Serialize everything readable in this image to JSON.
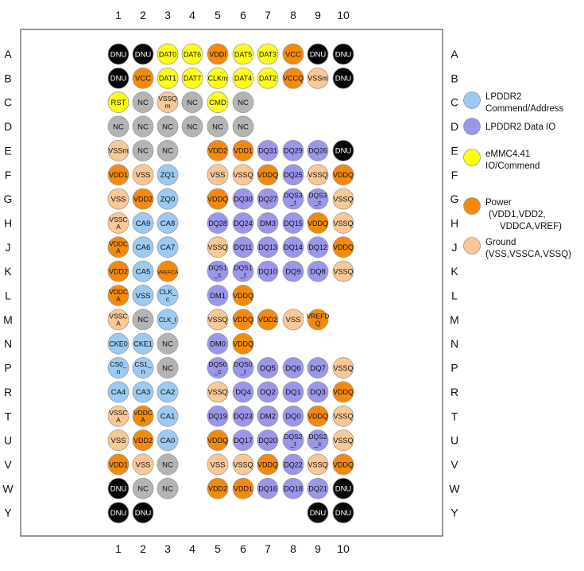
{
  "columns": [
    "1",
    "2",
    "3",
    "4",
    "5",
    "6",
    "7",
    "8",
    "9",
    "10"
  ],
  "rows": [
    "A",
    "B",
    "C",
    "D",
    "E",
    "F",
    "G",
    "H",
    "J",
    "K",
    "L",
    "M",
    "N",
    "P",
    "R",
    "T",
    "U",
    "V",
    "W",
    "Y"
  ],
  "colors": {
    "DNU": "#050505",
    "NC": "#b4b4b4",
    "EMMC": "#ffff14",
    "PWR": "#f58a0a",
    "GND": "#fac896",
    "CA": "#9ccaf2",
    "DQ": "#9a96ec"
  },
  "legend": [
    {
      "type": "CA",
      "line1": "LPDDR2",
      "line2": "Commend/Address"
    },
    {
      "type": "DQ",
      "line1": "LPDDR2 Data IO",
      "line2": ""
    },
    {
      "type": "EMMC",
      "line1": "eMMC4.41",
      "line2": "IO/Commend"
    },
    {
      "type": "PWR",
      "line1": "Power",
      "line2": "(VDD1,VDD2,",
      "line3": "VDDCA,VREF)"
    },
    {
      "type": "GND",
      "line1": "Ground",
      "line2": "(VSS,VSSCA,VSSQ)"
    }
  ],
  "balls": [
    {
      "r": "A",
      "c": 1,
      "t": "DNU",
      "l": "DNU"
    },
    {
      "r": "A",
      "c": 2,
      "t": "DNU",
      "l": "DNU"
    },
    {
      "r": "A",
      "c": 3,
      "t": "EMMC",
      "l": "DAT0"
    },
    {
      "r": "A",
      "c": 4,
      "t": "EMMC",
      "l": "DAT6"
    },
    {
      "r": "A",
      "c": 5,
      "t": "PWR",
      "l": "VDDI"
    },
    {
      "r": "A",
      "c": 6,
      "t": "EMMC",
      "l": "DAT5"
    },
    {
      "r": "A",
      "c": 7,
      "t": "EMMC",
      "l": "DAT3"
    },
    {
      "r": "A",
      "c": 8,
      "t": "PWR",
      "l": "VCC"
    },
    {
      "r": "A",
      "c": 9,
      "t": "DNU",
      "l": "DNU"
    },
    {
      "r": "A",
      "c": 10,
      "t": "DNU",
      "l": "DNU"
    },
    {
      "r": "B",
      "c": 1,
      "t": "DNU",
      "l": "DNU"
    },
    {
      "r": "B",
      "c": 2,
      "t": "PWR",
      "l": "VCC"
    },
    {
      "r": "B",
      "c": 3,
      "t": "EMMC",
      "l": "DAT1"
    },
    {
      "r": "B",
      "c": 4,
      "t": "EMMC",
      "l": "DAT7"
    },
    {
      "r": "B",
      "c": 5,
      "t": "EMMC",
      "l": "CLKm"
    },
    {
      "r": "B",
      "c": 6,
      "t": "EMMC",
      "l": "DAT4"
    },
    {
      "r": "B",
      "c": 7,
      "t": "EMMC",
      "l": "DAT2"
    },
    {
      "r": "B",
      "c": 8,
      "t": "PWR",
      "l": "VCCQ"
    },
    {
      "r": "B",
      "c": 9,
      "t": "GND",
      "l": "VSSm"
    },
    {
      "r": "B",
      "c": 10,
      "t": "DNU",
      "l": "DNU"
    },
    {
      "r": "C",
      "c": 1,
      "t": "EMMC",
      "l": "RST"
    },
    {
      "r": "C",
      "c": 2,
      "t": "NC",
      "l": "NC"
    },
    {
      "r": "C",
      "c": 3,
      "t": "GND",
      "l": "VSSQ m"
    },
    {
      "r": "C",
      "c": 4,
      "t": "NC",
      "l": "NC"
    },
    {
      "r": "C",
      "c": 5,
      "t": "EMMC",
      "l": "CMD"
    },
    {
      "r": "C",
      "c": 6,
      "t": "NC",
      "l": "NC"
    },
    {
      "r": "D",
      "c": 1,
      "t": "NC",
      "l": "NC"
    },
    {
      "r": "D",
      "c": 2,
      "t": "NC",
      "l": "NC"
    },
    {
      "r": "D",
      "c": 3,
      "t": "NC",
      "l": "NC"
    },
    {
      "r": "D",
      "c": 4,
      "t": "NC",
      "l": "NC"
    },
    {
      "r": "D",
      "c": 5,
      "t": "NC",
      "l": "NC"
    },
    {
      "r": "D",
      "c": 6,
      "t": "NC",
      "l": "NC"
    },
    {
      "r": "E",
      "c": 1,
      "t": "GND",
      "l": "VSSm"
    },
    {
      "r": "E",
      "c": 2,
      "t": "NC",
      "l": "NC"
    },
    {
      "r": "E",
      "c": 3,
      "t": "NC",
      "l": "NC"
    },
    {
      "r": "E",
      "c": 5,
      "t": "PWR",
      "l": "VDD2"
    },
    {
      "r": "E",
      "c": 6,
      "t": "PWR",
      "l": "VDD1"
    },
    {
      "r": "E",
      "c": 7,
      "t": "DQ",
      "l": "DQ31"
    },
    {
      "r": "E",
      "c": 8,
      "t": "DQ",
      "l": "DQ29"
    },
    {
      "r": "E",
      "c": 9,
      "t": "DQ",
      "l": "DQ26"
    },
    {
      "r": "E",
      "c": 10,
      "t": "DNU",
      "l": "DNU"
    },
    {
      "r": "F",
      "c": 1,
      "t": "PWR",
      "l": "VDD1"
    },
    {
      "r": "F",
      "c": 2,
      "t": "GND",
      "l": "VSS"
    },
    {
      "r": "F",
      "c": 3,
      "t": "CA",
      "l": "ZQ1"
    },
    {
      "r": "F",
      "c": 5,
      "t": "GND",
      "l": "VSS"
    },
    {
      "r": "F",
      "c": 6,
      "t": "GND",
      "l": "VSSQ"
    },
    {
      "r": "F",
      "c": 7,
      "t": "PWR",
      "l": "VDDQ"
    },
    {
      "r": "F",
      "c": 8,
      "t": "DQ",
      "l": "DQ25"
    },
    {
      "r": "F",
      "c": 9,
      "t": "GND",
      "l": "VSSQ"
    },
    {
      "r": "F",
      "c": 10,
      "t": "PWR",
      "l": "VDDQ"
    },
    {
      "r": "G",
      "c": 1,
      "t": "GND",
      "l": "VSS"
    },
    {
      "r": "G",
      "c": 2,
      "t": "PWR",
      "l": "VDD2"
    },
    {
      "r": "G",
      "c": 3,
      "t": "CA",
      "l": "ZQ0"
    },
    {
      "r": "G",
      "c": 5,
      "t": "PWR",
      "l": "VDDQ"
    },
    {
      "r": "G",
      "c": 6,
      "t": "DQ",
      "l": "DQ30"
    },
    {
      "r": "G",
      "c": 7,
      "t": "DQ",
      "l": "DQ27"
    },
    {
      "r": "G",
      "c": 8,
      "t": "DQ",
      "l": "DQS3 _t"
    },
    {
      "r": "G",
      "c": 9,
      "t": "DQ",
      "l": "DQS3 _c"
    },
    {
      "r": "G",
      "c": 10,
      "t": "GND",
      "l": "VSSQ"
    },
    {
      "r": "H",
      "c": 1,
      "t": "GND",
      "l": "VSSC A"
    },
    {
      "r": "H",
      "c": 2,
      "t": "CA",
      "l": "CA9"
    },
    {
      "r": "H",
      "c": 3,
      "t": "CA",
      "l": "CA8"
    },
    {
      "r": "H",
      "c": 5,
      "t": "DQ",
      "l": "DQ28"
    },
    {
      "r": "H",
      "c": 6,
      "t": "DQ",
      "l": "DQ24"
    },
    {
      "r": "H",
      "c": 7,
      "t": "DQ",
      "l": "DM3"
    },
    {
      "r": "H",
      "c": 8,
      "t": "DQ",
      "l": "DQ15"
    },
    {
      "r": "H",
      "c": 9,
      "t": "PWR",
      "l": "VDDQ"
    },
    {
      "r": "H",
      "c": 10,
      "t": "GND",
      "l": "VSSQ"
    },
    {
      "r": "J",
      "c": 1,
      "t": "PWR",
      "l": "VDDC A"
    },
    {
      "r": "J",
      "c": 2,
      "t": "CA",
      "l": "CA6"
    },
    {
      "r": "J",
      "c": 3,
      "t": "CA",
      "l": "CA7"
    },
    {
      "r": "J",
      "c": 5,
      "t": "GND",
      "l": "VSSQ"
    },
    {
      "r": "J",
      "c": 6,
      "t": "DQ",
      "l": "DQ11"
    },
    {
      "r": "J",
      "c": 7,
      "t": "DQ",
      "l": "DQ13"
    },
    {
      "r": "J",
      "c": 8,
      "t": "DQ",
      "l": "DQ14"
    },
    {
      "r": "J",
      "c": 9,
      "t": "DQ",
      "l": "DQ12"
    },
    {
      "r": "J",
      "c": 10,
      "t": "PWR",
      "l": "VDDQ"
    },
    {
      "r": "K",
      "c": 1,
      "t": "PWR",
      "l": "VDD2"
    },
    {
      "r": "K",
      "c": 2,
      "t": "CA",
      "l": "CA5"
    },
    {
      "r": "K",
      "c": 3,
      "t": "PWR",
      "l": "VREFCA"
    },
    {
      "r": "K",
      "c": 5,
      "t": "DQ",
      "l": "DQS1 _c"
    },
    {
      "r": "K",
      "c": 6,
      "t": "DQ",
      "l": "DQS1 _t"
    },
    {
      "r": "K",
      "c": 7,
      "t": "DQ",
      "l": "DQ10"
    },
    {
      "r": "K",
      "c": 8,
      "t": "DQ",
      "l": "DQ9"
    },
    {
      "r": "K",
      "c": 9,
      "t": "DQ",
      "l": "DQ8"
    },
    {
      "r": "K",
      "c": 10,
      "t": "GND",
      "l": "VSSQ"
    },
    {
      "r": "L",
      "c": 1,
      "t": "PWR",
      "l": "VDDC A"
    },
    {
      "r": "L",
      "c": 2,
      "t": "CA",
      "l": "VSS"
    },
    {
      "r": "L",
      "c": 3,
      "t": "CA",
      "l": "CLK_ c"
    },
    {
      "r": "L",
      "c": 5,
      "t": "DQ",
      "l": "DM1"
    },
    {
      "r": "L",
      "c": 6,
      "t": "PWR",
      "l": "VDDQ"
    },
    {
      "r": "M",
      "c": 1,
      "t": "GND",
      "l": "VSSC A"
    },
    {
      "r": "M",
      "c": 2,
      "t": "NC",
      "l": "NC"
    },
    {
      "r": "M",
      "c": 3,
      "t": "CA",
      "l": "CLK_t"
    },
    {
      "r": "M",
      "c": 5,
      "t": "GND",
      "l": "VSSQ"
    },
    {
      "r": "M",
      "c": 6,
      "t": "PWR",
      "l": "VDDQ"
    },
    {
      "r": "M",
      "c": 7,
      "t": "PWR",
      "l": "VDD2"
    },
    {
      "r": "M",
      "c": 8,
      "t": "GND",
      "l": "VSS"
    },
    {
      "r": "M",
      "c": 9,
      "t": "PWR",
      "l": "VREFD Q"
    },
    {
      "r": "N",
      "c": 1,
      "t": "CA",
      "l": "CKE0"
    },
    {
      "r": "N",
      "c": 2,
      "t": "CA",
      "l": "CKE1"
    },
    {
      "r": "N",
      "c": 3,
      "t": "NC",
      "l": "NC"
    },
    {
      "r": "N",
      "c": 5,
      "t": "DQ",
      "l": "DM0"
    },
    {
      "r": "N",
      "c": 6,
      "t": "PWR",
      "l": "VDDQ"
    },
    {
      "r": "P",
      "c": 1,
      "t": "CA",
      "l": "CS0_ n"
    },
    {
      "r": "P",
      "c": 2,
      "t": "CA",
      "l": "CS1_ n"
    },
    {
      "r": "P",
      "c": 3,
      "t": "NC",
      "l": "NC"
    },
    {
      "r": "P",
      "c": 5,
      "t": "DQ",
      "l": "DQS0 _c"
    },
    {
      "r": "P",
      "c": 6,
      "t": "DQ",
      "l": "DQS0 _t"
    },
    {
      "r": "P",
      "c": 7,
      "t": "DQ",
      "l": "DQ5"
    },
    {
      "r": "P",
      "c": 8,
      "t": "DQ",
      "l": "DQ6"
    },
    {
      "r": "P",
      "c": 9,
      "t": "DQ",
      "l": "DQ7"
    },
    {
      "r": "P",
      "c": 10,
      "t": "GND",
      "l": "VSSQ"
    },
    {
      "r": "R",
      "c": 1,
      "t": "CA",
      "l": "CA4"
    },
    {
      "r": "R",
      "c": 2,
      "t": "CA",
      "l": "CA3"
    },
    {
      "r": "R",
      "c": 3,
      "t": "CA",
      "l": "CA2"
    },
    {
      "r": "R",
      "c": 5,
      "t": "GND",
      "l": "VSSQ"
    },
    {
      "r": "R",
      "c": 6,
      "t": "DQ",
      "l": "DQ4"
    },
    {
      "r": "R",
      "c": 7,
      "t": "DQ",
      "l": "DQ2"
    },
    {
      "r": "R",
      "c": 8,
      "t": "DQ",
      "l": "DQ1"
    },
    {
      "r": "R",
      "c": 9,
      "t": "DQ",
      "l": "DQ3"
    },
    {
      "r": "R",
      "c": 10,
      "t": "PWR",
      "l": "VDDQ"
    },
    {
      "r": "T",
      "c": 1,
      "t": "GND",
      "l": "VSSC A"
    },
    {
      "r": "T",
      "c": 2,
      "t": "PWR",
      "l": "VDDC A"
    },
    {
      "r": "T",
      "c": 3,
      "t": "CA",
      "l": "CA1"
    },
    {
      "r": "T",
      "c": 5,
      "t": "DQ",
      "l": "DQ19"
    },
    {
      "r": "T",
      "c": 6,
      "t": "DQ",
      "l": "DQ23"
    },
    {
      "r": "T",
      "c": 7,
      "t": "DQ",
      "l": "DM2"
    },
    {
      "r": "T",
      "c": 8,
      "t": "DQ",
      "l": "DQ0"
    },
    {
      "r": "T",
      "c": 9,
      "t": "PWR",
      "l": "VDDQ"
    },
    {
      "r": "T",
      "c": 10,
      "t": "GND",
      "l": "VSSQ"
    },
    {
      "r": "U",
      "c": 1,
      "t": "GND",
      "l": "VSS"
    },
    {
      "r": "U",
      "c": 2,
      "t": "PWR",
      "l": "VDD2"
    },
    {
      "r": "U",
      "c": 3,
      "t": "CA",
      "l": "CA0"
    },
    {
      "r": "U",
      "c": 5,
      "t": "PWR",
      "l": "VDDQ"
    },
    {
      "r": "U",
      "c": 6,
      "t": "DQ",
      "l": "DQ17"
    },
    {
      "r": "U",
      "c": 7,
      "t": "DQ",
      "l": "DQ20"
    },
    {
      "r": "U",
      "c": 8,
      "t": "DQ",
      "l": "DQS2 _t"
    },
    {
      "r": "U",
      "c": 9,
      "t": "DQ",
      "l": "DQS2 _c"
    },
    {
      "r": "U",
      "c": 10,
      "t": "GND",
      "l": "VSSQ"
    },
    {
      "r": "V",
      "c": 1,
      "t": "PWR",
      "l": "VDD1"
    },
    {
      "r": "V",
      "c": 2,
      "t": "GND",
      "l": "VSS"
    },
    {
      "r": "V",
      "c": 3,
      "t": "NC",
      "l": "NC"
    },
    {
      "r": "V",
      "c": 5,
      "t": "GND",
      "l": "VSS"
    },
    {
      "r": "V",
      "c": 6,
      "t": "GND",
      "l": "VSSQ"
    },
    {
      "r": "V",
      "c": 7,
      "t": "PWR",
      "l": "VDDQ"
    },
    {
      "r": "V",
      "c": 8,
      "t": "DQ",
      "l": "DQ22"
    },
    {
      "r": "V",
      "c": 9,
      "t": "GND",
      "l": "VSSQ"
    },
    {
      "r": "V",
      "c": 10,
      "t": "PWR",
      "l": "VDDQ"
    },
    {
      "r": "W",
      "c": 1,
      "t": "DNU",
      "l": "DNU"
    },
    {
      "r": "W",
      "c": 2,
      "t": "NC",
      "l": "NC"
    },
    {
      "r": "W",
      "c": 3,
      "t": "NC",
      "l": "NC"
    },
    {
      "r": "W",
      "c": 5,
      "t": "PWR",
      "l": "VDD2"
    },
    {
      "r": "W",
      "c": 6,
      "t": "PWR",
      "l": "VDD1"
    },
    {
      "r": "W",
      "c": 7,
      "t": "DQ",
      "l": "DQ16"
    },
    {
      "r": "W",
      "c": 8,
      "t": "DQ",
      "l": "DQ18"
    },
    {
      "r": "W",
      "c": 9,
      "t": "DQ",
      "l": "DQ21"
    },
    {
      "r": "W",
      "c": 10,
      "t": "DNU",
      "l": "DNU"
    },
    {
      "r": "Y",
      "c": 1,
      "t": "DNU",
      "l": "DNU"
    },
    {
      "r": "Y",
      "c": 2,
      "t": "DNU",
      "l": "DNU"
    },
    {
      "r": "Y",
      "c": 9,
      "t": "DNU",
      "l": "DNU"
    },
    {
      "r": "Y",
      "c": 10,
      "t": "DNU",
      "l": "DNU"
    }
  ]
}
